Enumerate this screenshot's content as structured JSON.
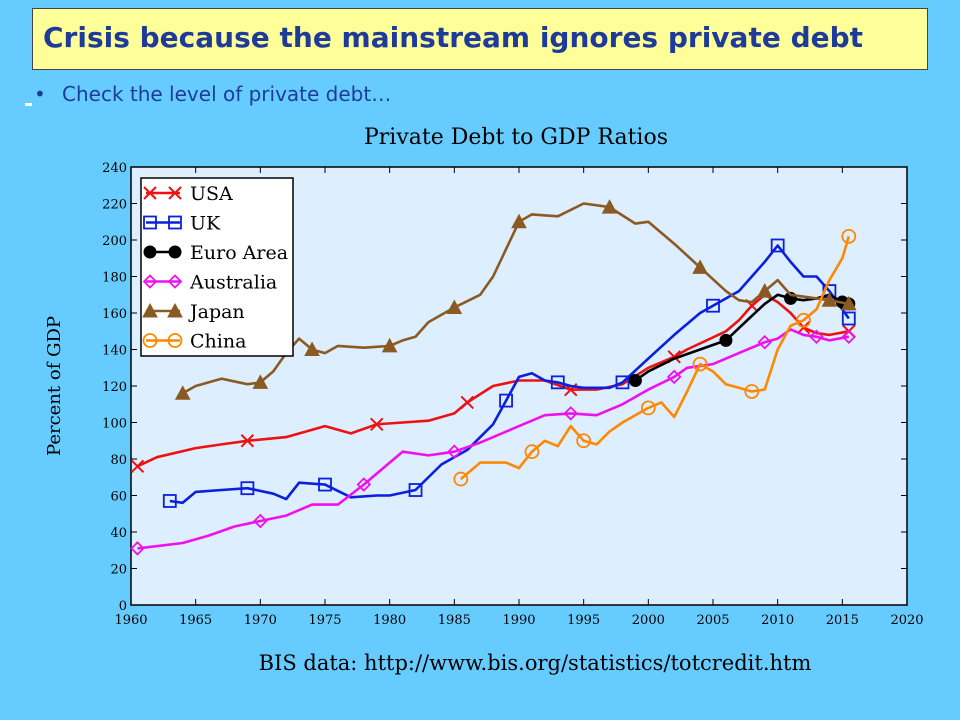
{
  "slide": {
    "title": "Crisis because the mainstream ignores private debt",
    "bullet": "Check the level of private debt…"
  },
  "colors": {
    "background": "#66ccff",
    "title_bg": "#ffff99",
    "title_text": "#1f3b99",
    "plot_bg": "#ddeeff"
  },
  "chart_data": {
    "type": "line",
    "title": "Private Debt to GDP Ratios",
    "xlabel": "",
    "ylabel": "Percent of GDP",
    "source": "BIS data: http://www.bis.org/statistics/totcredit.htm",
    "xlim": [
      1960,
      2020
    ],
    "ylim": [
      0,
      240
    ],
    "x_ticks": [
      1960,
      1965,
      1970,
      1975,
      1980,
      1985,
      1990,
      1995,
      2000,
      2005,
      2010,
      2015,
      2020
    ],
    "y_ticks": [
      0,
      20,
      40,
      60,
      80,
      100,
      120,
      140,
      160,
      180,
      200,
      220,
      240
    ],
    "grid": false,
    "legend_position": "top-left",
    "series": [
      {
        "name": "USA",
        "color": "#ee1111",
        "marker": "x",
        "points": [
          [
            1960.5,
            76
          ],
          [
            1962,
            81
          ],
          [
            1965,
            86
          ],
          [
            1967,
            88
          ],
          [
            1969,
            90
          ],
          [
            1972,
            92
          ],
          [
            1975,
            98
          ],
          [
            1977,
            94
          ],
          [
            1979,
            99
          ],
          [
            1981,
            100
          ],
          [
            1983,
            101
          ],
          [
            1985,
            105
          ],
          [
            1986,
            111
          ],
          [
            1988,
            120
          ],
          [
            1990,
            123
          ],
          [
            1992,
            123
          ],
          [
            1994,
            118
          ],
          [
            1996,
            118
          ],
          [
            1998,
            121
          ],
          [
            2000,
            130
          ],
          [
            2002,
            136
          ],
          [
            2003,
            140
          ],
          [
            2006,
            150
          ],
          [
            2007,
            156
          ],
          [
            2008,
            164
          ],
          [
            2009,
            170
          ],
          [
            2010,
            166
          ],
          [
            2011,
            160
          ],
          [
            2012,
            152
          ],
          [
            2013,
            149
          ],
          [
            2014,
            148
          ],
          [
            2015.5,
            150
          ]
        ]
      },
      {
        "name": "UK",
        "color": "#0a1fe0",
        "marker": "square",
        "points": [
          [
            1963,
            57
          ],
          [
            1964,
            56
          ],
          [
            1965,
            62
          ],
          [
            1967,
            63
          ],
          [
            1969,
            64
          ],
          [
            1971,
            61
          ],
          [
            1972,
            58
          ],
          [
            1973,
            67
          ],
          [
            1975,
            66
          ],
          [
            1977,
            59
          ],
          [
            1979,
            60
          ],
          [
            1980,
            60
          ],
          [
            1982,
            63
          ],
          [
            1984,
            77
          ],
          [
            1986,
            85
          ],
          [
            1988,
            99
          ],
          [
            1989,
            112
          ],
          [
            1990,
            125
          ],
          [
            1991,
            127
          ],
          [
            1992,
            123
          ],
          [
            1993,
            122
          ],
          [
            1994,
            120
          ],
          [
            1995,
            119
          ],
          [
            1997,
            119
          ],
          [
            1998,
            122
          ],
          [
            2000,
            135
          ],
          [
            2002,
            148
          ],
          [
            2004,
            160
          ],
          [
            2005,
            164
          ],
          [
            2007,
            172
          ],
          [
            2008,
            180
          ],
          [
            2009,
            188
          ],
          [
            2010,
            197
          ],
          [
            2011,
            188
          ],
          [
            2012,
            180
          ],
          [
            2013,
            180
          ],
          [
            2014,
            172
          ],
          [
            2015.5,
            157
          ]
        ]
      },
      {
        "name": "Euro Area",
        "color": "#000000",
        "marker": "dot",
        "points": [
          [
            1999,
            123
          ],
          [
            2000,
            128
          ],
          [
            2002,
            135
          ],
          [
            2004,
            140
          ],
          [
            2006,
            145
          ],
          [
            2007.5,
            155
          ],
          [
            2009,
            165
          ],
          [
            2010,
            170
          ],
          [
            2011,
            168
          ],
          [
            2012,
            167
          ],
          [
            2013,
            168
          ],
          [
            2014,
            170
          ],
          [
            2015,
            166
          ],
          [
            2015.5,
            165
          ]
        ]
      },
      {
        "name": "Australia",
        "color": "#ee11ee",
        "marker": "diamond",
        "points": [
          [
            1960.5,
            31
          ],
          [
            1964,
            34
          ],
          [
            1966,
            38
          ],
          [
            1968,
            43
          ],
          [
            1970,
            46
          ],
          [
            1972,
            49
          ],
          [
            1974,
            55
          ],
          [
            1976,
            55
          ],
          [
            1978,
            66
          ],
          [
            1980,
            78
          ],
          [
            1981,
            84
          ],
          [
            1983,
            82
          ],
          [
            1985,
            84
          ],
          [
            1987,
            89
          ],
          [
            1990,
            98
          ],
          [
            1992,
            104
          ],
          [
            1994,
            105
          ],
          [
            1996,
            104
          ],
          [
            1998,
            110
          ],
          [
            2000,
            118
          ],
          [
            2002,
            125
          ],
          [
            2003,
            130
          ],
          [
            2005,
            132
          ],
          [
            2007,
            138
          ],
          [
            2009,
            144
          ],
          [
            2010,
            146
          ],
          [
            2011,
            151
          ],
          [
            2012,
            148
          ],
          [
            2013,
            147
          ],
          [
            2014,
            145
          ],
          [
            2015.5,
            147
          ]
        ]
      },
      {
        "name": "Japan",
        "color": "#8a5a22",
        "marker": "triangle",
        "points": [
          [
            1964,
            116
          ],
          [
            1965,
            120
          ],
          [
            1967,
            124
          ],
          [
            1969,
            121
          ],
          [
            1970,
            122
          ],
          [
            1971,
            128
          ],
          [
            1972,
            138
          ],
          [
            1973,
            146
          ],
          [
            1974,
            140
          ],
          [
            1975,
            138
          ],
          [
            1976,
            142
          ],
          [
            1978,
            141
          ],
          [
            1980,
            142
          ],
          [
            1981,
            145
          ],
          [
            1982,
            147
          ],
          [
            1983,
            155
          ],
          [
            1985,
            163
          ],
          [
            1987,
            170
          ],
          [
            1988,
            180
          ],
          [
            1989,
            195
          ],
          [
            1990,
            210
          ],
          [
            1991,
            214
          ],
          [
            1993,
            213
          ],
          [
            1995,
            220
          ],
          [
            1997,
            218
          ],
          [
            1999,
            209
          ],
          [
            2000,
            210
          ],
          [
            2002,
            198
          ],
          [
            2004,
            185
          ],
          [
            2006,
            172
          ],
          [
            2007,
            167
          ],
          [
            2008,
            166
          ],
          [
            2009,
            172
          ],
          [
            2010,
            178
          ],
          [
            2011,
            170
          ],
          [
            2013,
            168
          ],
          [
            2014,
            167
          ],
          [
            2015.5,
            165
          ]
        ]
      },
      {
        "name": "China",
        "color": "#ff8800",
        "marker": "circle",
        "points": [
          [
            1985.5,
            69
          ],
          [
            1987,
            78
          ],
          [
            1989,
            78
          ],
          [
            1990,
            75
          ],
          [
            1991,
            84
          ],
          [
            1992,
            90
          ],
          [
            1993,
            87
          ],
          [
            1994,
            98
          ],
          [
            1995,
            90
          ],
          [
            1996,
            88
          ],
          [
            1997,
            95
          ],
          [
            1998,
            100
          ],
          [
            2000,
            108
          ],
          [
            2001,
            111
          ],
          [
            2002,
            103
          ],
          [
            2003,
            117
          ],
          [
            2004,
            132
          ],
          [
            2005,
            128
          ],
          [
            2006,
            121
          ],
          [
            2007,
            119
          ],
          [
            2008,
            117
          ],
          [
            2009,
            118
          ],
          [
            2010,
            140
          ],
          [
            2011,
            153
          ],
          [
            2012,
            156
          ],
          [
            2013,
            162
          ],
          [
            2014,
            178
          ],
          [
            2015,
            190
          ],
          [
            2015.5,
            202
          ]
        ]
      }
    ]
  }
}
